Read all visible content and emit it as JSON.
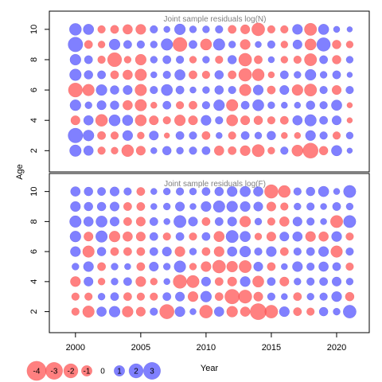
{
  "chart_data": {
    "type": "bubble",
    "xlabel": "Year",
    "ylabel": "Age",
    "years": [
      2000,
      2001,
      2002,
      2003,
      2004,
      2005,
      2006,
      2007,
      2008,
      2009,
      2010,
      2011,
      2012,
      2013,
      2014,
      2015,
      2016,
      2017,
      2018,
      2019,
      2020,
      2021
    ],
    "ages": [
      2,
      3,
      4,
      5,
      6,
      7,
      8,
      9,
      10
    ],
    "xticks": [
      2000,
      2005,
      2010,
      2015,
      2020
    ],
    "yticks": [
      2,
      4,
      6,
      8,
      10
    ],
    "xlim": [
      1998,
      2022.5
    ],
    "ylim": [
      0.6,
      11.2
    ],
    "positive_color": "#5555ff",
    "negative_color": "#ff5555",
    "panels": [
      {
        "title": "Joint sample residuals log(N)",
        "residuals": [
          [
            1.4,
            0.9,
            -0.5,
            -0.4,
            -1.5,
            -0.8,
            0.3,
            0.7,
            0.4,
            0.5,
            0.6,
            -0.9,
            -0.6,
            -1.0,
            -1.6,
            -0.4,
            0.5,
            -1.3,
            -2.6,
            -0.7,
            1.1,
            0.2
          ],
          [
            2.4,
            1.2,
            -0.6,
            -0.5,
            1.0,
            -0.4,
            0.8,
            -0.2,
            0.6,
            0.5,
            -0.6,
            0.3,
            -0.5,
            0.6,
            0.4,
            0.7,
            -0.3,
            -0.3,
            1.0,
            0.5,
            -0.5,
            0.4
          ],
          [
            -0.8,
            0.9,
            -1.5,
            1.3,
            1.1,
            -1.3,
            -0.8,
            -0.5,
            -1.2,
            -0.8,
            1.0,
            0.5,
            -1.3,
            -0.8,
            -0.7,
            -0.5,
            -0.6,
            0.9,
            1.4,
            0.6,
            0.8,
            -0.2
          ],
          [
            1.2,
            0.4,
            0.8,
            0.7,
            -0.9,
            -1.4,
            -0.3,
            0.6,
            -0.5,
            -0.6,
            0.5,
            1.2,
            -1.4,
            0.6,
            1.3,
            0.4,
            0.3,
            0.3,
            0.7,
            0.5,
            1.1,
            -0.2
          ],
          [
            -2.2,
            -1.4,
            1.2,
            0.7,
            0.8,
            -1.4,
            0.5,
            1.3,
            0.6,
            0.3,
            0.4,
            0.7,
            0.5,
            -1.4,
            1.0,
            -0.6,
            0.8,
            -1.2,
            -1.6,
            0.5,
            -0.8,
            0.5
          ],
          [
            1.4,
            0.7,
            0.6,
            -0.6,
            -0.9,
            -1.4,
            0.3,
            0.5,
            1.1,
            -0.6,
            -0.5,
            0.7,
            -0.6,
            -1.8,
            -1.5,
            -0.3,
            0.6,
            0.4,
            1.2,
            0.4,
            0.6,
            0.2
          ],
          [
            1.2,
            0.6,
            -0.5,
            -2.2,
            -0.4,
            -1.2,
            0.4,
            0.6,
            0.5,
            -0.4,
            0.4,
            -0.5,
            0.7,
            -1.8,
            -0.6,
            0.3,
            -0.4,
            -0.5,
            -1.6,
            0.6,
            -0.7,
            0.4
          ],
          [
            2.4,
            -0.6,
            -0.4,
            1.2,
            0.6,
            0.5,
            0.4,
            1.4,
            -2.2,
            0.6,
            -1.3,
            1.4,
            0.4,
            -1.0,
            0.3,
            0.5,
            -0.4,
            0.8,
            -1.3,
            2.0,
            -0.7,
            -0.4
          ],
          [
            1.5,
            1.1,
            -0.5,
            -0.6,
            -0.9,
            -1.0,
            0.5,
            0.3,
            1.2,
            0.4,
            0.4,
            0.5,
            -0.6,
            -0.8,
            -1.8,
            -0.5,
            -0.5,
            1.0,
            -1.6,
            1.1,
            0.3,
            0.2
          ]
        ]
      },
      {
        "title": "Joint sample residuals log(F)",
        "residuals": [
          [
            -0.5,
            -1.4,
            0.9,
            1.2,
            -1.2,
            -0.8,
            0.5,
            -2.3,
            1.0,
            0.3,
            -1.8,
            0.9,
            -1.2,
            -0.9,
            -3.0,
            -1.8,
            1.0,
            -0.6,
            -0.5,
            0.7,
            0.4,
            1.8
          ],
          [
            -0.5,
            -0.5,
            0.4,
            0.6,
            -0.6,
            -0.5,
            -0.5,
            0.6,
            0.8,
            -1.0,
            1.2,
            -0.6,
            -2.4,
            -1.9,
            -0.8,
            0.5,
            0.3,
            -0.6,
            0.4,
            0.5,
            1.0,
            -0.7
          ],
          [
            -1.0,
            0.8,
            -0.4,
            0.4,
            0.6,
            -1.0,
            -0.4,
            0.3,
            -2.0,
            -1.6,
            0.8,
            -0.6,
            -0.8,
            1.0,
            -1.3,
            0.6,
            -0.8,
            0.4,
            0.5,
            0.6,
            0.8,
            0.4
          ],
          [
            0.4,
            1.0,
            -0.6,
            0.4,
            0.3,
            -0.6,
            0.8,
            0.4,
            1.4,
            -0.4,
            -1.0,
            -1.8,
            -1.2,
            -1.6,
            0.8,
            -0.6,
            0.3,
            1.0,
            0.5,
            0.9,
            0.6,
            -0.5
          ],
          [
            1.0,
            -1.4,
            0.7,
            -0.6,
            -0.6,
            -0.6,
            0.6,
            0.8,
            -1.0,
            0.4,
            -0.6,
            -1.0,
            0.9,
            1.2,
            0.5,
            1.0,
            -0.6,
            0.5,
            0.6,
            1.0,
            -1.4,
            0.5
          ],
          [
            1.2,
            -0.8,
            1.4,
            -1.2,
            -0.9,
            -0.8,
            0.6,
            -0.5,
            0.6,
            -0.5,
            0.6,
            -1.1,
            1.6,
            1.1,
            -0.4,
            -0.8,
            0.8,
            0.9,
            -1.0,
            -0.9,
            1.0,
            -0.5
          ],
          [
            1.4,
            0.9,
            1.3,
            0.8,
            -0.6,
            -0.8,
            0.6,
            0.3,
            1.6,
            0.8,
            -0.6,
            0.6,
            0.8,
            -1.2,
            0.4,
            -0.5,
            -0.9,
            0.8,
            0.5,
            0.3,
            -1.6,
            1.6
          ],
          [
            1.0,
            0.7,
            0.7,
            0.8,
            -0.6,
            -0.6,
            0.3,
            0.4,
            0.8,
            0.3,
            1.0,
            1.4,
            1.2,
            1.0,
            0.8,
            -0.8,
            -0.5,
            0.4,
            0.5,
            0.3,
            0.6,
            0.4
          ],
          [
            0.9,
            0.7,
            0.6,
            0.8,
            0.5,
            -0.6,
            0.3,
            0.4,
            0.5,
            0.4,
            0.6,
            0.7,
            1.0,
            1.1,
            0.9,
            -2.0,
            -1.5,
            0.5,
            0.7,
            1.1,
            0.3,
            1.6
          ]
        ]
      }
    ],
    "legend": {
      "values": [
        -4,
        -3,
        -2,
        -1,
        0,
        1,
        2,
        3
      ],
      "labels": [
        "-4",
        "-3",
        "-2",
        "-1",
        "0",
        "1",
        "2",
        "3"
      ]
    }
  }
}
